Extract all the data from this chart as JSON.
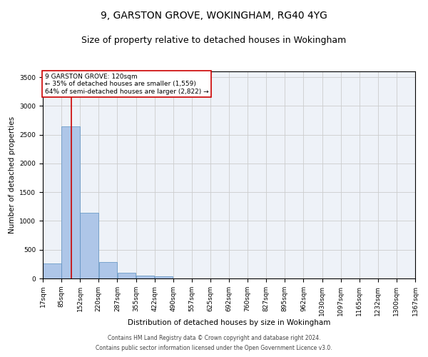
{
  "title1": "9, GARSTON GROVE, WOKINGHAM, RG40 4YG",
  "title2": "Size of property relative to detached houses in Wokingham",
  "xlabel": "Distribution of detached houses by size in Wokingham",
  "ylabel": "Number of detached properties",
  "footer1": "Contains HM Land Registry data © Crown copyright and database right 2024.",
  "footer2": "Contains public sector information licensed under the Open Government Licence v3.0.",
  "annotation_line1": "9 GARSTON GROVE: 120sqm",
  "annotation_line2": "← 35% of detached houses are smaller (1,559)",
  "annotation_line3": "64% of semi-detached houses are larger (2,822) →",
  "bin_edges": [
    17,
    84.5,
    152,
    219.5,
    287,
    354.5,
    422,
    489.5,
    557,
    624.5,
    692,
    759.5,
    827,
    894.5,
    962,
    1029.5,
    1097,
    1164.5,
    1232,
    1299.5,
    1367
  ],
  "bar_heights": [
    265,
    2650,
    1145,
    285,
    100,
    55,
    35,
    0,
    0,
    0,
    0,
    0,
    0,
    0,
    0,
    0,
    0,
    0,
    0,
    0
  ],
  "tick_labels": [
    "17sqm",
    "85sqm",
    "152sqm",
    "220sqm",
    "287sqm",
    "355sqm",
    "422sqm",
    "490sqm",
    "557sqm",
    "625sqm",
    "692sqm",
    "760sqm",
    "827sqm",
    "895sqm",
    "962sqm",
    "1030sqm",
    "1097sqm",
    "1165sqm",
    "1232sqm",
    "1300sqm",
    "1367sqm"
  ],
  "bar_color": "#aec6e8",
  "bar_edge_color": "#5a8fc0",
  "vline_color": "#cc0000",
  "vline_x": 120,
  "ylim": [
    0,
    3600
  ],
  "yticks": [
    0,
    500,
    1000,
    1500,
    2000,
    2500,
    3000,
    3500
  ],
  "grid_color": "#cccccc",
  "bg_color": "#eef2f8",
  "annotation_box_color": "#cc0000",
  "title_fontsize": 10,
  "subtitle_fontsize": 9,
  "axis_label_fontsize": 7.5,
  "tick_fontsize": 6.5,
  "footer_fontsize": 5.5,
  "annotation_fontsize": 6.5
}
